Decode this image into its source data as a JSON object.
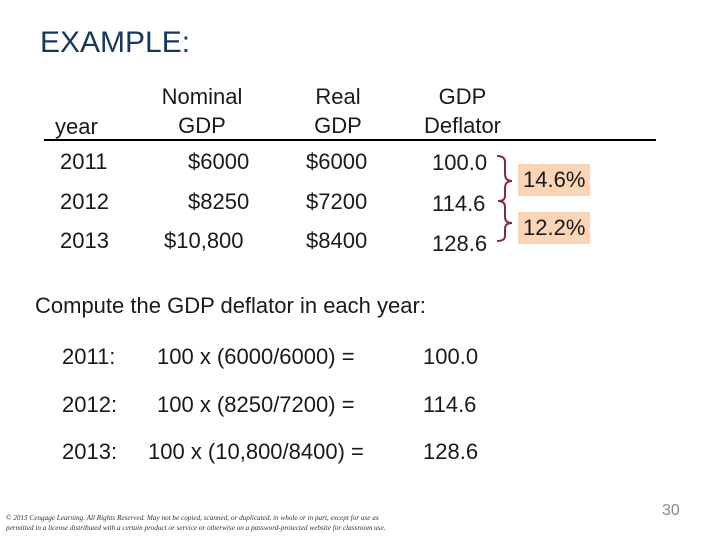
{
  "title": "EXAMPLE:",
  "table": {
    "headers": {
      "year": "year",
      "nominal": [
        "Nominal",
        "GDP"
      ],
      "real": [
        "Real",
        "GDP"
      ],
      "deflator": [
        "GDP",
        "Deflator"
      ]
    },
    "rows": [
      {
        "year": "2011",
        "nominal": "$6000",
        "real": "$6000",
        "deflator": "100.0"
      },
      {
        "year": "2012",
        "nominal": "$8250",
        "real": "$7200",
        "deflator": "114.6"
      },
      {
        "year": "2013",
        "nominal": "$10,800",
        "real": "$8400",
        "deflator": "128.6"
      }
    ]
  },
  "growth": [
    "14.6%",
    "12.2%"
  ],
  "prompt": "Compute the GDP deflator in each year:",
  "calculations": [
    {
      "year": "2011:",
      "formula": "100 x (6000/6000)  =",
      "result": "100.0"
    },
    {
      "year": "2012:",
      "formula": "100 x (8250/7200)  =",
      "result": "114.6"
    },
    {
      "year": "2013:",
      "formula": "100 x (10,800/8400) =",
      "result": "128.6"
    }
  ],
  "footer": {
    "copyright_line1": "© 2015 Cengage Learning. All Rights Reserved. May not be copied, scanned, or duplicated, in whole or in part, except for use as",
    "copyright_line2": "permitted in a license distributed with a certain product or service or otherwise on a password-protected website for classroom use.",
    "page_number": "30"
  },
  "colors": {
    "title": "#17375e",
    "highlight": "#fbd5b5",
    "bracket": "#7f2a4f"
  }
}
